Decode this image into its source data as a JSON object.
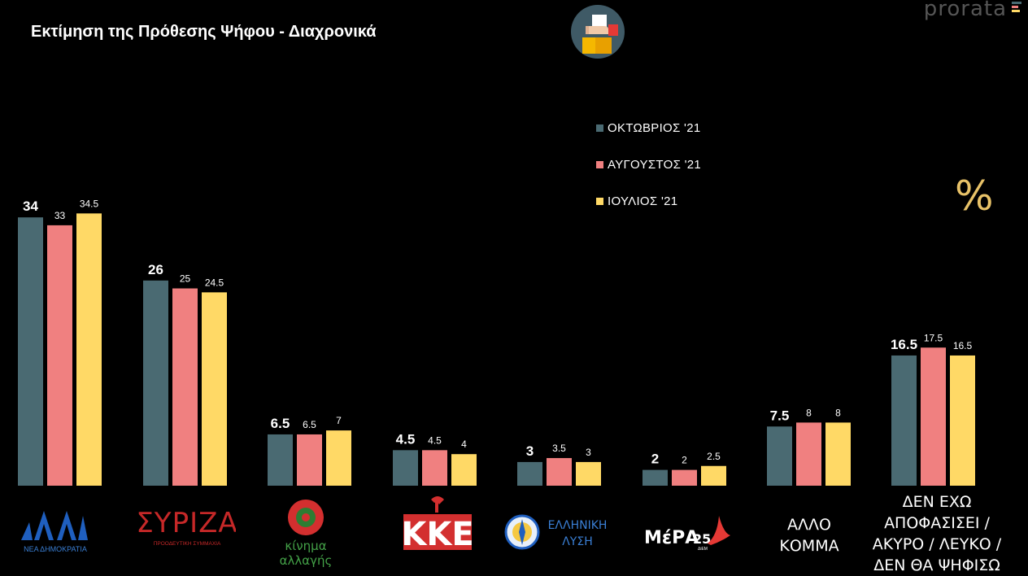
{
  "title": "Εκτίμηση της Πρόθεσης Ψήφου - Διαχρονικά",
  "brand": "prorata",
  "percent_symbol": "%",
  "colors": {
    "oct": "#4a6a72",
    "aug": "#f08080",
    "jul": "#ffd966",
    "background": "#000000"
  },
  "chart_data": {
    "type": "bar",
    "title": "Εκτίμηση της Πρόθεσης Ψήφου - Διαχρονικά",
    "xlabel": "",
    "ylabel": "",
    "ylim": [
      0,
      36
    ],
    "grid": false,
    "legend_position": "top-right",
    "categories": [
      "ΝΕΑ ΔΗΜΟΚΡΑΤΙΑ",
      "ΣΥΡΙΖΑ",
      "κίνημα αλλαγής",
      "ΚΚΕ",
      "ΕΛΛΗΝΙΚΗ ΛΥΣΗ",
      "ΜέΡΑ25",
      "ΑΛΛΟ ΚΟΜΜΑ",
      "ΔΕΝ ΕΧΩ ΑΠΟΦΑΣΙΣΕΙ / ΑΚΥΡΟ / ΛΕΥΚΟ / ΔΕΝ ΘΑ ΨΗΦΙΣΩ"
    ],
    "series": [
      {
        "name": "ΟΚΤΩΒΡΙΟΣ '21",
        "color": "#4a6a72",
        "values": [
          34,
          26,
          6.5,
          4.5,
          3,
          2,
          7.5,
          16.5
        ]
      },
      {
        "name": "ΑΥΓΟΥΣΤΟΣ '21",
        "color": "#f08080",
        "values": [
          33,
          25,
          6.5,
          4.5,
          3.5,
          2,
          8,
          17.5
        ]
      },
      {
        "name": "ΙΟΥΛΙΟΣ '21",
        "color": "#ffd966",
        "values": [
          34.5,
          24.5,
          7,
          4,
          3,
          2.5,
          8,
          16.5
        ]
      }
    ]
  },
  "logos": {
    "nd": {
      "name": "ΝΔ",
      "caption": "ΝΕΑ ΔΗΜΟΚΡΑΤΙΑ"
    },
    "syriza": {
      "name": "ΣΥΡΙΖΑ",
      "caption": "ΠΡΟΟΔΕΥΤΙΚΗ ΣΥΜΜΑΧΙΑ"
    },
    "kinal": {
      "line1": "κίνημα",
      "line2": "αλλαγής"
    },
    "kke": {
      "name": "ΚΚΕ"
    },
    "el": {
      "line1": "ΕΛΛΗΝΙΚΗ",
      "line2": "ΛΥΣΗ"
    },
    "mera": {
      "name": "ΜέΡΑ",
      "num": "25",
      "sub": "ΔiEM"
    },
    "other": {
      "line1": "ΑΛΛΟ",
      "line2": "ΚΟΜΜΑ"
    },
    "undecided": {
      "line1": "ΔΕΝ ΕΧΩ",
      "line2": "ΑΠΟΦΑΣΙΣΕΙ /",
      "line3": "ΑΚΥΡΟ / ΛΕΥΚΟ /",
      "line4": "ΔΕΝ ΘΑ ΨΗΦΙΣΩ"
    }
  }
}
